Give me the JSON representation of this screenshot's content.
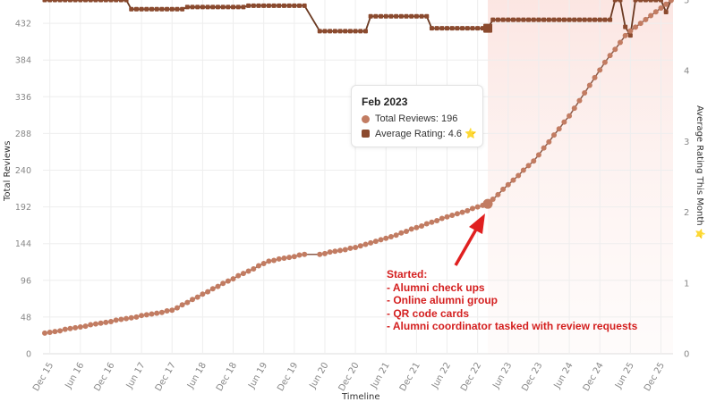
{
  "chart_data": {
    "type": "line",
    "title": "",
    "xlabel": "Timeline",
    "ylabel": "Total Reviews",
    "y2label": "Average Rating This Month ⭐",
    "start_month": "Nov 2015",
    "frequency": "monthly",
    "x_tick_labels": [
      "Dec 15",
      "Jun 16",
      "Dec 16",
      "Jun 17",
      "Dec 17",
      "Jun 18",
      "Dec 18",
      "Jun 19",
      "Dec 19",
      "Jun 20",
      "Dec 20",
      "Jun 21",
      "Dec 21",
      "Jun 22",
      "Dec 22",
      "Jun 23",
      "Dec 23",
      "Jun 24",
      "Dec 24",
      "Jun 25",
      "Dec 25"
    ],
    "y_ticks": [
      0,
      48,
      96,
      144,
      192,
      240,
      288,
      336,
      384,
      432
    ],
    "y2_ticks": [
      0,
      1,
      2,
      3,
      4,
      5
    ],
    "ylim": [
      0,
      462.5
    ],
    "y2lim": [
      0,
      5
    ],
    "grid": true,
    "colors": {
      "total_reviews": "#c27c62",
      "average_rating": "#8b4a2e",
      "rating_line": "#6b3a22",
      "annotation": "#d42020",
      "highlight_band": "#fbe9e6"
    },
    "series": [
      {
        "name": "Total Reviews",
        "axis": "left",
        "marker": "circle",
        "values": [
          27,
          28,
          29,
          30,
          32,
          33,
          34,
          35,
          36,
          38,
          39,
          40,
          41,
          42,
          44,
          45,
          46,
          47,
          48,
          50,
          51,
          52,
          53,
          54,
          56,
          57,
          60,
          64,
          67,
          71,
          74,
          78,
          81,
          85,
          88,
          92,
          95,
          98,
          102,
          105,
          108,
          111,
          115,
          118,
          121,
          122,
          124,
          125,
          126,
          127,
          129,
          130,
          null,
          null,
          130,
          131,
          133,
          134,
          135,
          136,
          138,
          139,
          141,
          143,
          145,
          147,
          149,
          151,
          153,
          155,
          158,
          160,
          163,
          165,
          167,
          170,
          172,
          174,
          177,
          179,
          181,
          183,
          185,
          187,
          190,
          192,
          194,
          196,
          202,
          208,
          215,
          221,
          227,
          233,
          240,
          246,
          252,
          260,
          269,
          277,
          286,
          294,
          303,
          311,
          321,
          331,
          341,
          351,
          361,
          371,
          381,
          390,
          398,
          407,
          416,
          422,
          427,
          432,
          437,
          442,
          447,
          452,
          457,
          462
        ]
      },
      {
        "name": "Average Rating",
        "axis": "right",
        "marker": "square",
        "values": [
          5,
          5,
          5,
          5,
          5,
          5,
          5,
          5,
          5,
          5,
          5,
          5,
          5,
          5,
          5,
          5,
          5,
          4.87,
          4.87,
          4.87,
          4.87,
          4.87,
          4.87,
          4.87,
          4.87,
          4.87,
          4.87,
          4.87,
          4.9,
          4.9,
          4.9,
          4.9,
          4.9,
          4.9,
          4.9,
          4.9,
          4.9,
          4.9,
          4.9,
          4.9,
          4.92,
          4.92,
          4.92,
          4.92,
          4.92,
          4.92,
          4.92,
          4.92,
          4.92,
          4.92,
          4.92,
          4.92,
          null,
          null,
          4.56,
          4.56,
          4.56,
          4.56,
          4.56,
          4.56,
          4.56,
          4.56,
          4.56,
          4.56,
          4.77,
          4.77,
          4.77,
          4.77,
          4.77,
          4.77,
          4.77,
          4.77,
          4.77,
          4.77,
          4.77,
          4.77,
          4.6,
          4.6,
          4.6,
          4.6,
          4.6,
          4.6,
          4.6,
          4.6,
          4.6,
          4.6,
          4.6,
          4.6,
          4.72,
          4.72,
          4.72,
          4.72,
          4.72,
          4.72,
          4.72,
          4.72,
          4.72,
          4.72,
          4.72,
          4.72,
          4.72,
          4.72,
          4.72,
          4.72,
          4.72,
          4.72,
          4.72,
          4.72,
          4.72,
          4.72,
          4.72,
          4.72,
          5,
          5,
          4.62,
          4.5,
          5,
          5,
          5,
          5,
          5,
          5,
          4.83,
          5
        ]
      }
    ],
    "highlight_index": 87,
    "tooltip": {
      "title": "Feb 2023",
      "total_reviews": "Total Reviews: 196",
      "average_rating": "Average Rating: 4.6 ⭐"
    },
    "annotation": {
      "lines": [
        "Started:",
        "- Alumni check ups",
        "- Online alumni group",
        "- QR code cards",
        "- Alumni coordinator tasked with review requests"
      ]
    }
  }
}
